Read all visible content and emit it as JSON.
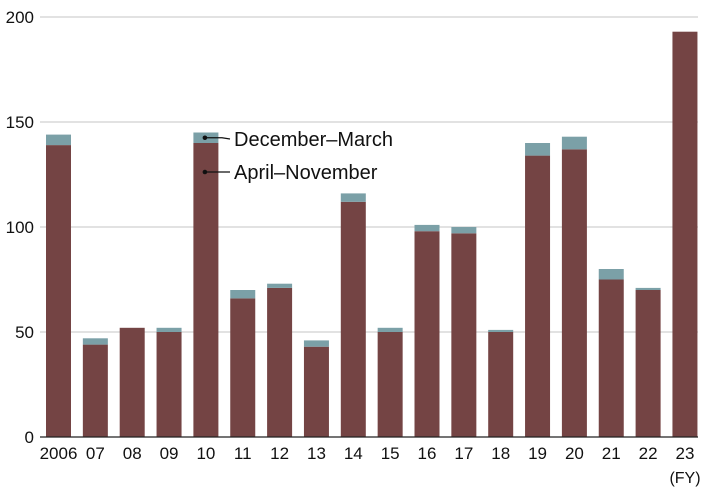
{
  "chart_data": {
    "type": "bar",
    "stacked": true,
    "categories": [
      "2006",
      "07",
      "08",
      "09",
      "10",
      "11",
      "12",
      "13",
      "14",
      "15",
      "16",
      "17",
      "18",
      "19",
      "20",
      "21",
      "22",
      "23"
    ],
    "x_unit": "(FY)",
    "ylim": [
      0,
      200
    ],
    "yticks": [
      "0",
      "50",
      "100",
      "150",
      "200"
    ],
    "grid": true,
    "series": [
      {
        "name": "April–November",
        "color": "#744444",
        "values": [
          139,
          44,
          52,
          50,
          140,
          66,
          71,
          43,
          112,
          50,
          98,
          97,
          50,
          134,
          137,
          75,
          70,
          193
        ]
      },
      {
        "name": "December–March",
        "color": "#7BA0A7",
        "values": [
          5,
          3,
          0,
          2,
          5,
          4,
          2,
          3,
          4,
          2,
          3,
          3,
          1,
          6,
          6,
          5,
          1,
          0
        ]
      }
    ],
    "legend": [
      {
        "label": "December–March",
        "series": 1
      },
      {
        "label": "April–November",
        "series": 0
      }
    ],
    "legend_placement": "top-center, pointing to FY10 bar"
  }
}
